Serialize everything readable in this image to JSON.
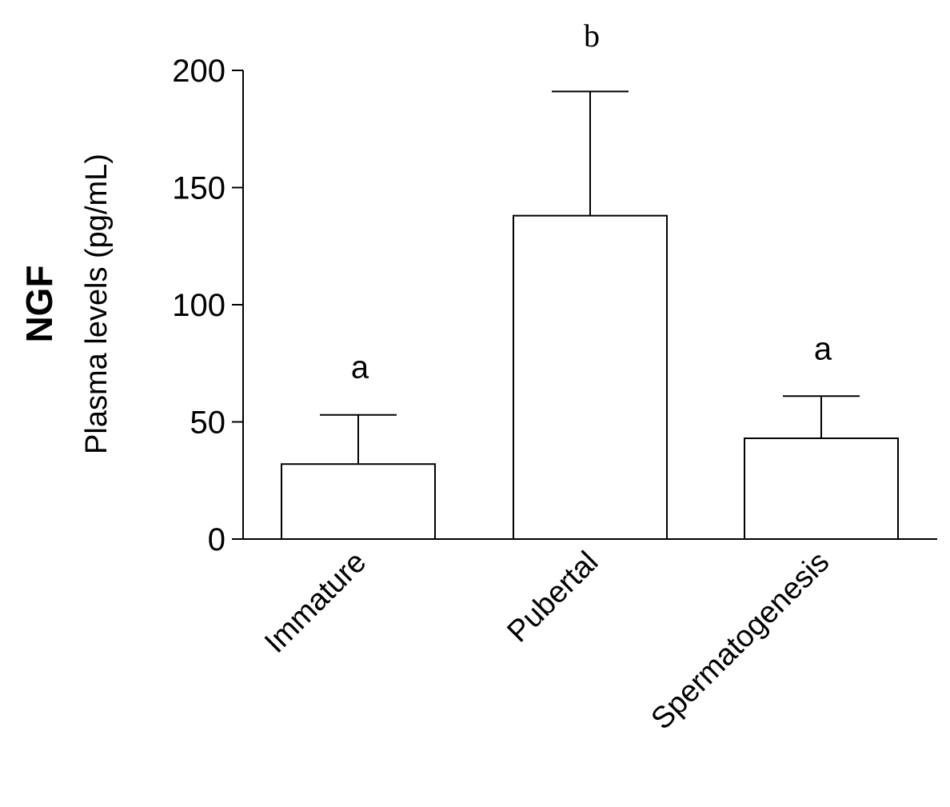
{
  "chart_data": {
    "type": "bar",
    "title": "",
    "ylabel_main": "NGF",
    "ylabel": "Plasma levels (pg/mL)",
    "xlabel": "",
    "ylim": [
      0,
      200
    ],
    "yticks": [
      0,
      50,
      100,
      150,
      200
    ],
    "categories": [
      "Immature",
      "Pubertal",
      "Spermatogenesis"
    ],
    "values": [
      32,
      138,
      43
    ],
    "error_upper": [
      53,
      191,
      61
    ],
    "significance_letters": [
      "a",
      "b",
      "a"
    ],
    "bar_fill": "#ffffff",
    "bar_stroke": "#000000",
    "grid": false,
    "legend": "none"
  }
}
